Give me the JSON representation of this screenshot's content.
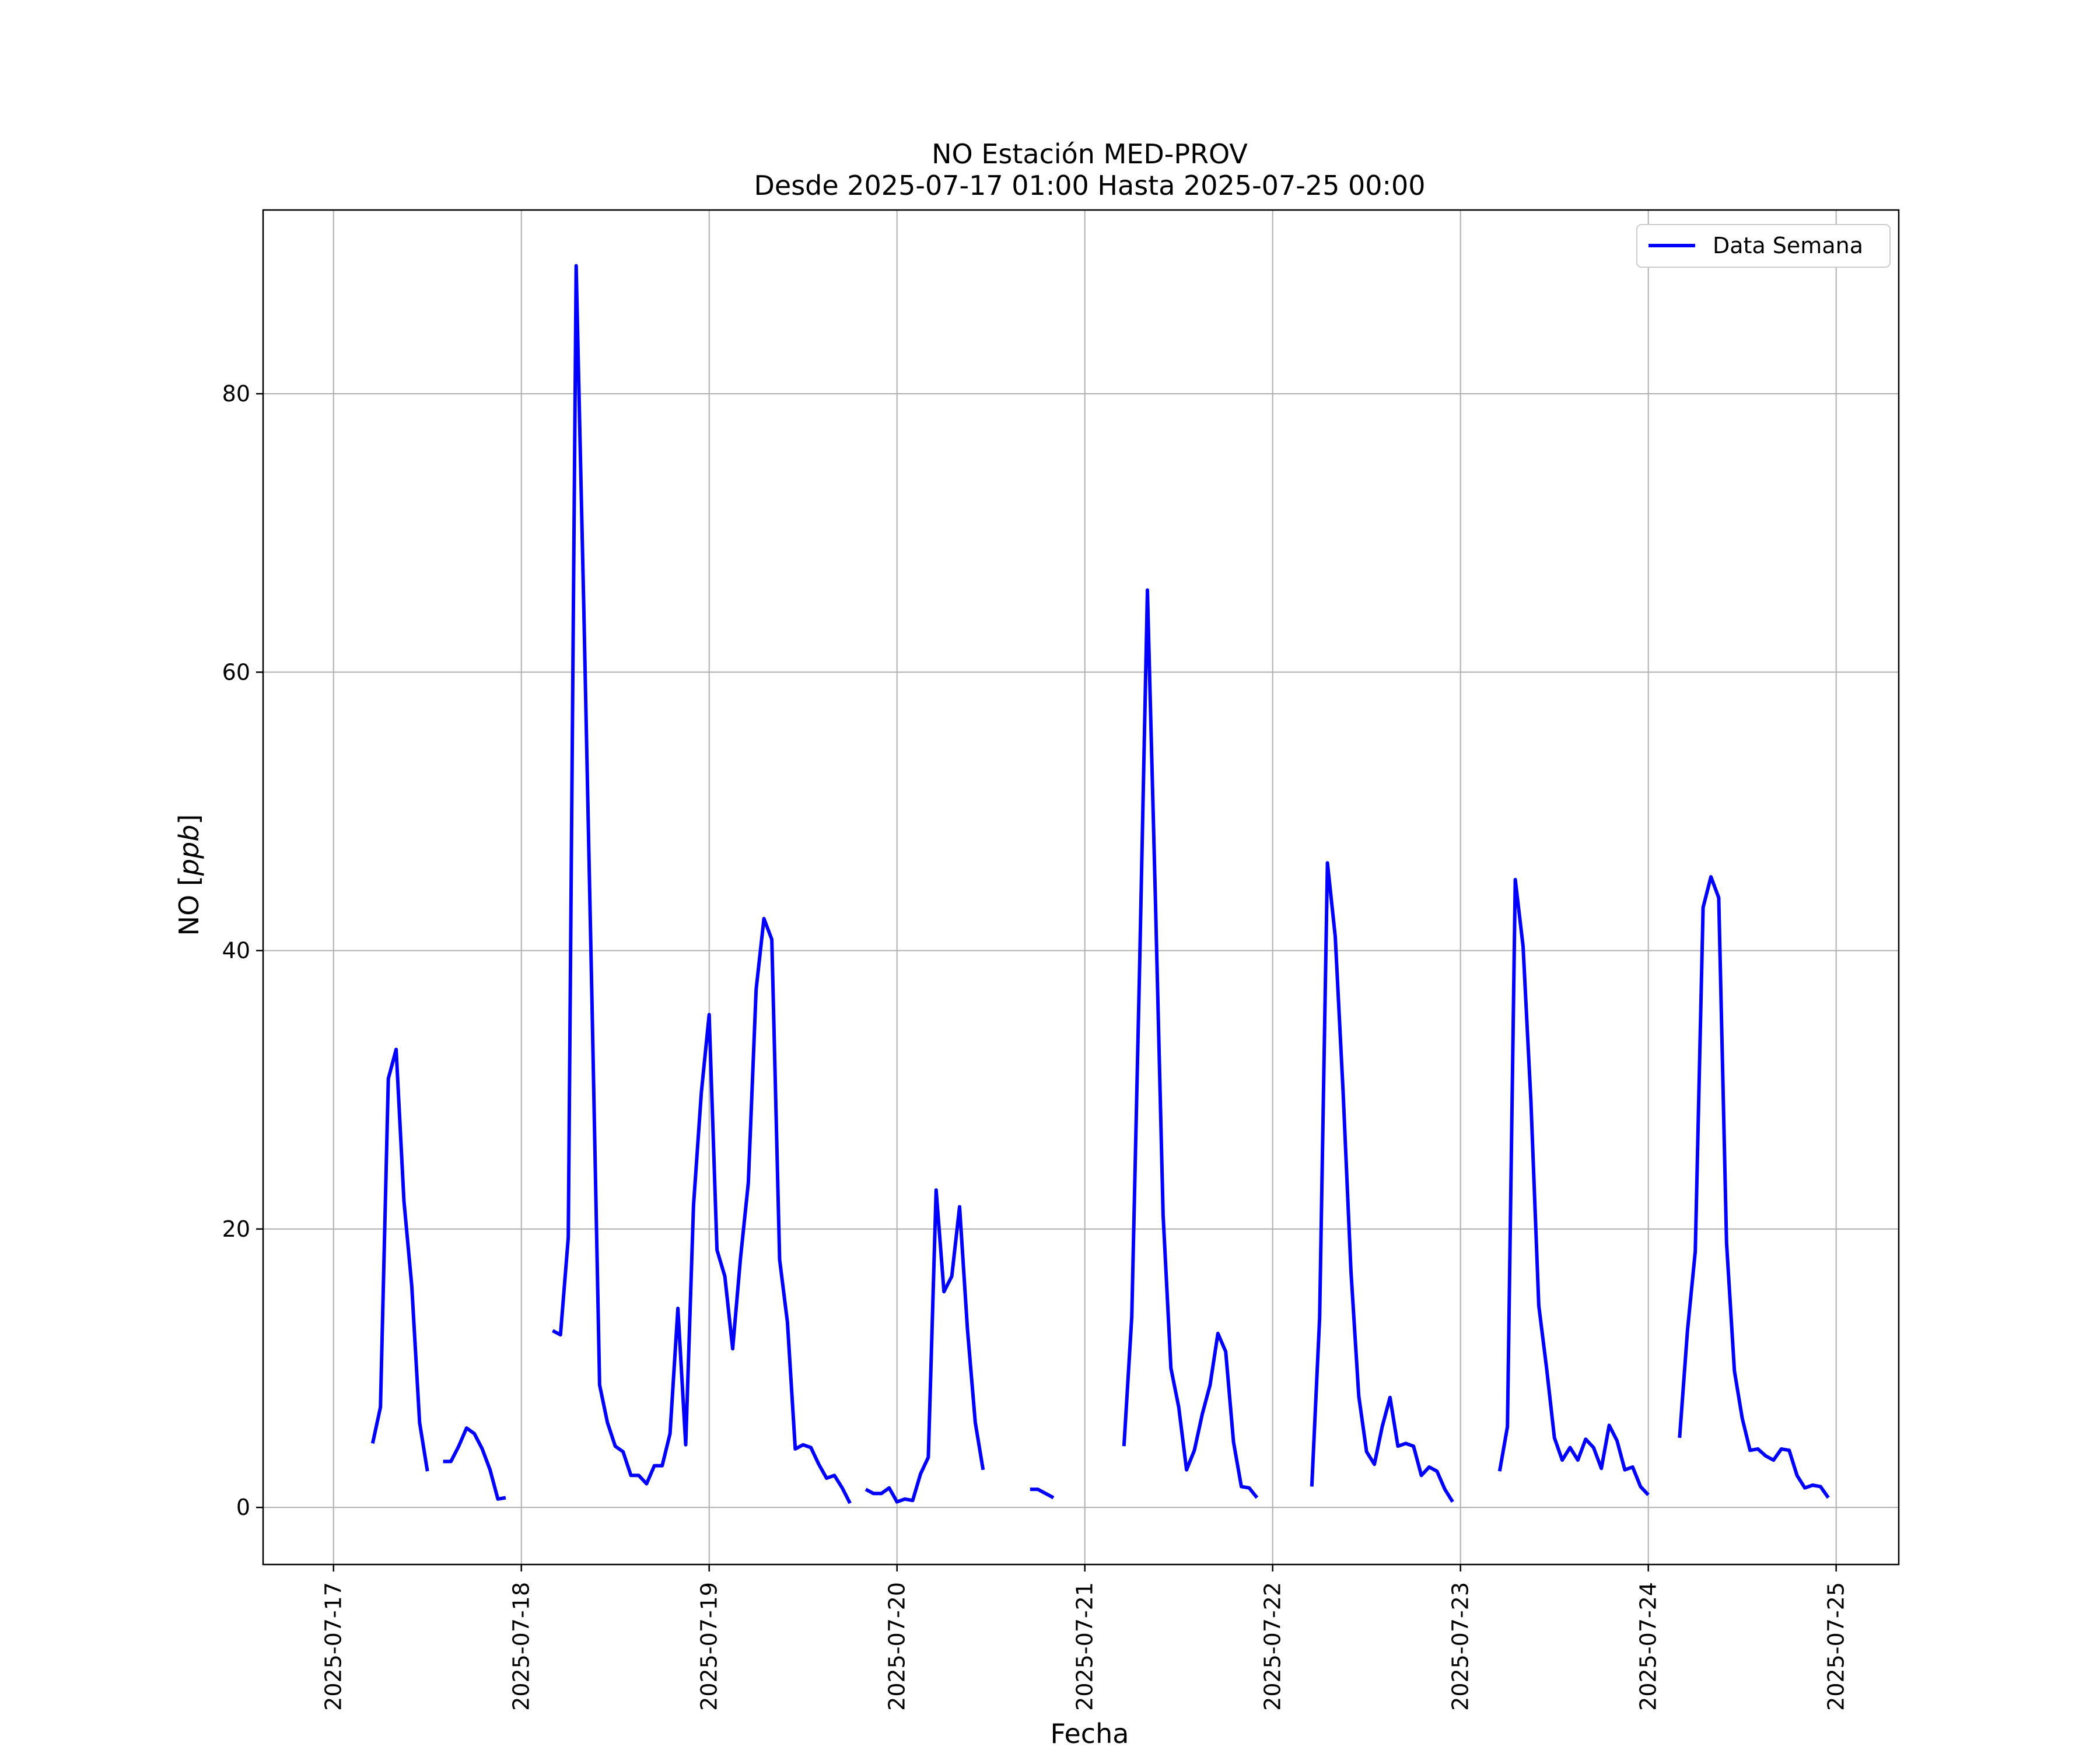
{
  "chart_data": {
    "type": "line",
    "title": "NO Estación MED-PROV",
    "subtitle": "Desde 2025-07-17 01:00 Hasta 2025-07-25 00:00",
    "xlabel": "Fecha",
    "ylabel_prefix": "NO [",
    "ylabel_unit": "ppb",
    "ylabel_suffix": "]",
    "x_range": [
      "2025-07-16 15:00",
      "2025-07-25 08:00"
    ],
    "ylim": [
      -4.1,
      93.2
    ],
    "yticks": [
      0,
      20,
      40,
      60,
      80
    ],
    "ytick_labels": [
      "0",
      "20",
      "40",
      "60",
      "80"
    ],
    "xticks": [
      "2025-07-17",
      "2025-07-18",
      "2025-07-19",
      "2025-07-20",
      "2025-07-21",
      "2025-07-22",
      "2025-07-23",
      "2025-07-24",
      "2025-07-25"
    ],
    "grid": true,
    "legend_position": "top-right",
    "series": [
      {
        "name": "Data Semana",
        "color": "#0000ff",
        "segments": [
          [
            [
              "2025-07-17 05:00",
              4.6
            ],
            [
              "2025-07-17 06:00",
              7.2
            ],
            [
              "2025-07-17 07:00",
              30.8
            ],
            [
              "2025-07-17 08:00",
              32.9
            ],
            [
              "2025-07-17 09:00",
              22.0
            ],
            [
              "2025-07-17 10:00",
              15.9
            ],
            [
              "2025-07-17 11:00",
              6.1
            ],
            [
              "2025-07-17 12:00",
              2.6
            ]
          ],
          [
            [
              "2025-07-17 14:00",
              3.3
            ],
            [
              "2025-07-17 15:00",
              3.3
            ],
            [
              "2025-07-17 16:00",
              4.4
            ],
            [
              "2025-07-17 17:00",
              5.7
            ],
            [
              "2025-07-17 18:00",
              5.3
            ],
            [
              "2025-07-17 19:00",
              4.2
            ],
            [
              "2025-07-17 20:00",
              2.7
            ],
            [
              "2025-07-17 21:00",
              0.6
            ],
            [
              "2025-07-17 22:00",
              0.7
            ]
          ],
          [
            [
              "2025-07-18 04:00",
              12.7
            ],
            [
              "2025-07-18 05:00",
              12.4
            ],
            [
              "2025-07-18 06:00",
              19.4
            ],
            [
              "2025-07-18 07:00",
              89.2
            ],
            [
              "2025-07-18 08:00",
              64.0
            ],
            [
              "2025-07-18 09:00",
              37.0
            ],
            [
              "2025-07-18 10:00",
              8.8
            ],
            [
              "2025-07-18 11:00",
              6.1
            ],
            [
              "2025-07-18 12:00",
              4.4
            ],
            [
              "2025-07-18 13:00",
              4.0
            ],
            [
              "2025-07-18 14:00",
              2.3
            ],
            [
              "2025-07-18 15:00",
              2.3
            ],
            [
              "2025-07-18 16:00",
              1.7
            ],
            [
              "2025-07-18 17:00",
              3.0
            ],
            [
              "2025-07-18 18:00",
              3.0
            ],
            [
              "2025-07-18 19:00",
              5.3
            ],
            [
              "2025-07-18 20:00",
              14.3
            ],
            [
              "2025-07-18 21:00",
              4.5
            ],
            [
              "2025-07-18 22:00",
              21.7
            ],
            [
              "2025-07-18 23:00",
              29.8
            ],
            [
              "2025-07-19 00:00",
              35.4
            ],
            [
              "2025-07-19 01:00",
              18.5
            ],
            [
              "2025-07-19 02:00",
              16.6
            ],
            [
              "2025-07-19 03:00",
              11.4
            ],
            [
              "2025-07-19 04:00",
              17.9
            ],
            [
              "2025-07-19 05:00",
              23.3
            ],
            [
              "2025-07-19 06:00",
              37.2
            ],
            [
              "2025-07-19 07:00",
              42.3
            ],
            [
              "2025-07-19 08:00",
              40.8
            ],
            [
              "2025-07-19 09:00",
              17.8
            ],
            [
              "2025-07-19 10:00",
              13.3
            ],
            [
              "2025-07-19 11:00",
              4.2
            ],
            [
              "2025-07-19 12:00",
              4.5
            ],
            [
              "2025-07-19 13:00",
              4.3
            ],
            [
              "2025-07-19 14:00",
              3.1
            ],
            [
              "2025-07-19 15:00",
              2.1
            ],
            [
              "2025-07-19 16:00",
              2.3
            ],
            [
              "2025-07-19 17:00",
              1.4
            ],
            [
              "2025-07-19 18:00",
              0.3
            ]
          ],
          [
            [
              "2025-07-19 20:00",
              1.3
            ],
            [
              "2025-07-19 21:00",
              1.0
            ],
            [
              "2025-07-19 22:00",
              1.0
            ],
            [
              "2025-07-19 23:00",
              1.4
            ],
            [
              "2025-07-20 00:00",
              0.4
            ],
            [
              "2025-07-20 01:00",
              0.6
            ],
            [
              "2025-07-20 02:00",
              0.5
            ],
            [
              "2025-07-20 03:00",
              2.4
            ],
            [
              "2025-07-20 04:00",
              3.6
            ],
            [
              "2025-07-20 05:00",
              22.8
            ],
            [
              "2025-07-20 06:00",
              15.5
            ],
            [
              "2025-07-20 07:00",
              16.6
            ],
            [
              "2025-07-20 08:00",
              21.6
            ],
            [
              "2025-07-20 09:00",
              12.8
            ],
            [
              "2025-07-20 10:00",
              6.1
            ],
            [
              "2025-07-20 11:00",
              2.7
            ]
          ],
          [
            [
              "2025-07-20 17:00",
              1.3
            ],
            [
              "2025-07-20 18:00",
              1.3
            ],
            [
              "2025-07-20 19:00",
              1.0
            ],
            [
              "2025-07-20 20:00",
              0.7
            ]
          ],
          [
            [
              "2025-07-21 05:00",
              4.4
            ],
            [
              "2025-07-21 06:00",
              13.7
            ],
            [
              "2025-07-21 07:00",
              38.8
            ],
            [
              "2025-07-21 08:00",
              65.9
            ],
            [
              "2025-07-21 09:00",
              44.0
            ],
            [
              "2025-07-21 10:00",
              21.0
            ],
            [
              "2025-07-21 11:00",
              10.0
            ],
            [
              "2025-07-21 12:00",
              7.2
            ],
            [
              "2025-07-21 13:00",
              2.7
            ],
            [
              "2025-07-21 14:00",
              4.1
            ],
            [
              "2025-07-21 15:00",
              6.7
            ],
            [
              "2025-07-21 16:00",
              8.8
            ],
            [
              "2025-07-21 17:00",
              12.5
            ],
            [
              "2025-07-21 18:00",
              11.2
            ],
            [
              "2025-07-21 19:00",
              4.7
            ],
            [
              "2025-07-21 20:00",
              1.5
            ],
            [
              "2025-07-21 21:00",
              1.4
            ],
            [
              "2025-07-21 22:00",
              0.7
            ]
          ],
          [
            [
              "2025-07-22 05:00",
              1.5
            ],
            [
              "2025-07-22 06:00",
              13.6
            ],
            [
              "2025-07-22 07:00",
              46.3
            ],
            [
              "2025-07-22 08:00",
              41.0
            ],
            [
              "2025-07-22 09:00",
              29.9
            ],
            [
              "2025-07-22 10:00",
              17.0
            ],
            [
              "2025-07-22 11:00",
              8.0
            ],
            [
              "2025-07-22 12:00",
              4.0
            ],
            [
              "2025-07-22 13:00",
              3.1
            ],
            [
              "2025-07-22 14:00",
              5.8
            ],
            [
              "2025-07-22 15:00",
              7.9
            ],
            [
              "2025-07-22 16:00",
              4.4
            ],
            [
              "2025-07-22 17:00",
              4.6
            ],
            [
              "2025-07-22 18:00",
              4.4
            ],
            [
              "2025-07-22 19:00",
              2.3
            ],
            [
              "2025-07-22 20:00",
              2.9
            ],
            [
              "2025-07-22 21:00",
              2.6
            ],
            [
              "2025-07-22 22:00",
              1.3
            ],
            [
              "2025-07-22 23:00",
              0.4
            ]
          ],
          [
            [
              "2025-07-23 05:00",
              2.6
            ],
            [
              "2025-07-23 06:00",
              5.8
            ],
            [
              "2025-07-23 07:00",
              45.1
            ],
            [
              "2025-07-23 08:00",
              40.3
            ],
            [
              "2025-07-23 09:00",
              29.2
            ],
            [
              "2025-07-23 10:00",
              14.5
            ],
            [
              "2025-07-23 11:00",
              10.0
            ],
            [
              "2025-07-23 12:00",
              5.0
            ],
            [
              "2025-07-23 13:00",
              3.4
            ],
            [
              "2025-07-23 14:00",
              4.3
            ],
            [
              "2025-07-23 15:00",
              3.4
            ],
            [
              "2025-07-23 16:00",
              4.9
            ],
            [
              "2025-07-23 17:00",
              4.3
            ],
            [
              "2025-07-23 18:00",
              2.8
            ],
            [
              "2025-07-23 19:00",
              5.9
            ],
            [
              "2025-07-23 20:00",
              4.8
            ],
            [
              "2025-07-23 21:00",
              2.7
            ],
            [
              "2025-07-23 22:00",
              2.9
            ],
            [
              "2025-07-23 23:00",
              1.5
            ],
            [
              "2025-07-24 00:00",
              0.9
            ]
          ],
          [
            [
              "2025-07-24 04:00",
              5.0
            ],
            [
              "2025-07-24 05:00",
              12.7
            ],
            [
              "2025-07-24 06:00",
              18.4
            ],
            [
              "2025-07-24 07:00",
              43.1
            ],
            [
              "2025-07-24 08:00",
              45.3
            ],
            [
              "2025-07-24 09:00",
              43.8
            ],
            [
              "2025-07-24 10:00",
              19.0
            ],
            [
              "2025-07-24 11:00",
              9.8
            ],
            [
              "2025-07-24 12:00",
              6.4
            ],
            [
              "2025-07-24 13:00",
              4.1
            ],
            [
              "2025-07-24 14:00",
              4.2
            ],
            [
              "2025-07-24 15:00",
              3.7
            ],
            [
              "2025-07-24 16:00",
              3.4
            ],
            [
              "2025-07-24 17:00",
              4.2
            ],
            [
              "2025-07-24 18:00",
              4.1
            ],
            [
              "2025-07-24 19:00",
              2.3
            ],
            [
              "2025-07-24 20:00",
              1.4
            ],
            [
              "2025-07-24 21:00",
              1.6
            ],
            [
              "2025-07-24 22:00",
              1.5
            ],
            [
              "2025-07-24 23:00",
              0.7
            ]
          ]
        ]
      }
    ]
  }
}
